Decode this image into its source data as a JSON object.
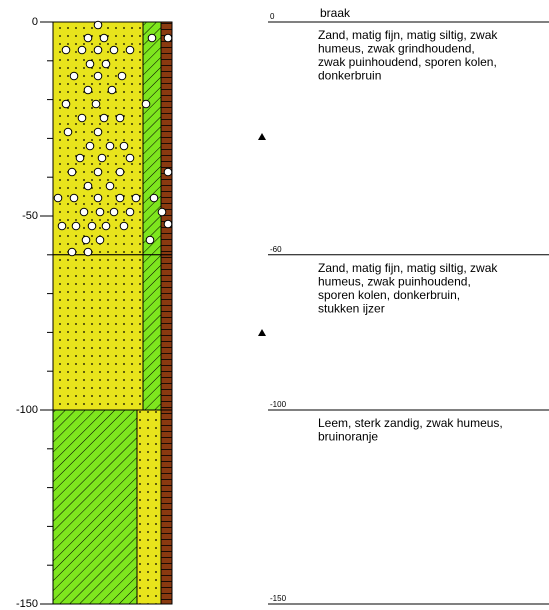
{
  "axis": {
    "ticks": [
      0,
      -50,
      -100,
      -150
    ]
  },
  "surface_note": "braak",
  "boundaries": [
    0,
    -60,
    -100,
    -150
  ],
  "layers": [
    {
      "lines": [
        "Zand, matig fijn, matig siltig, zwak",
        "humeus, zwak grindhoudend,",
        "zwak puinhoudend, sporen kolen,",
        "donkerbruin"
      ]
    },
    {
      "lines": [
        "Zand, matig fijn, matig siltig, zwak",
        "humeus, zwak puinhoudend,",
        "sporen kolen, donkerbruin,",
        "stukken ijzer"
      ]
    },
    {
      "lines": [
        "Leem, sterk zandig, zwak humeus,",
        "bruinoranje"
      ]
    }
  ]
}
